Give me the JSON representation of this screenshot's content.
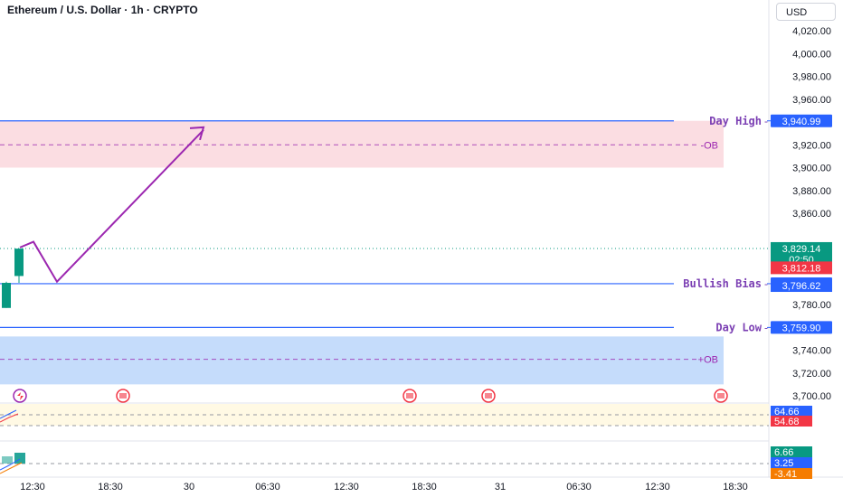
{
  "header": {
    "title": "Ethereum / U.S. Dollar · 1h · CRYPTO",
    "currency": "USD"
  },
  "chart_data": {
    "type": "candlestick",
    "price_axis": {
      "ylim": [
        3690,
        4036
      ],
      "ticks": [
        "4,020.00",
        "4,000.00",
        "3,980.00",
        "3,960.00",
        "3,940.00",
        "3,920.00",
        "3,900.00",
        "3,880.00",
        "3,860.00",
        "3,840.00",
        "3,820.00",
        "3,800.00",
        "3,780.00",
        "3,760.00",
        "3,740.00",
        "3,720.00",
        "3,700.00"
      ],
      "tick_values": [
        4020,
        4000,
        3980,
        3960,
        3940,
        3920,
        3900,
        3880,
        3860,
        3840,
        3820,
        3800,
        3780,
        3760,
        3740,
        3720,
        3700
      ]
    },
    "time_axis": {
      "ticks": [
        "12:30",
        "18:30",
        "30",
        "06:30",
        "12:30",
        "18:30",
        "31",
        "06:30",
        "12:30",
        "18:30"
      ]
    },
    "zones": [
      {
        "label": "OB",
        "label_text": "-OB",
        "top": 3940.99,
        "bottom": 3900,
        "mid": 3920,
        "color": "#fbdde2",
        "kind": "supply"
      },
      {
        "label": "OB",
        "label_text": "+OB",
        "top": 3752,
        "bottom": 3710,
        "mid": 3732,
        "color": "#c5dcfb",
        "kind": "demand"
      }
    ],
    "levels": [
      {
        "name": "Day High",
        "value": 3940.99,
        "price_label": "3,940.99",
        "color": "#2962ff"
      },
      {
        "name": "Bullish Bias",
        "value": 3798.26,
        "price_label": "3,798.26",
        "color": "#2962ff"
      },
      {
        "name": "Day Low",
        "value": 3759.9,
        "price_label": "3,759.90",
        "color": "#2962ff"
      }
    ],
    "price_labels": [
      {
        "text": "3,829.14",
        "value": 3829.14,
        "color": "#089981"
      },
      {
        "text": "02:50",
        "value": 3829.14,
        "color": "#089981",
        "sub": true
      },
      {
        "text": "3,812.18",
        "value": 3812.18,
        "color": "#f23645"
      },
      {
        "text": "3,796.62",
        "value": 3796.62,
        "color": "#2962ff"
      }
    ],
    "current_price": 3829.14,
    "candles": [
      {
        "open": 3777,
        "high": 3800,
        "low": 3777,
        "close": 3799,
        "color": "#089981"
      },
      {
        "open": 3805,
        "high": 3829,
        "low": 3799,
        "close": 3829,
        "color": "#089981"
      }
    ],
    "projection_path": [
      {
        "t": 0,
        "price": 3830
      },
      {
        "t": 1,
        "price": 3835
      },
      {
        "t": 2,
        "price": 3800
      },
      {
        "t": 3,
        "price": 3933
      }
    ],
    "indicator1": {
      "labels": [
        "64.66",
        "54.68"
      ],
      "label_colors": [
        "#2962ff",
        "#f23645"
      ]
    },
    "indicator2": {
      "labels": [
        "6.66",
        "3.25",
        "-3.41"
      ],
      "label_colors": [
        "#089981",
        "#2962ff",
        "#f57c00"
      ]
    },
    "events": [
      "flag-icon",
      "flag-icon",
      "flag-icon",
      "flag-icon"
    ]
  }
}
